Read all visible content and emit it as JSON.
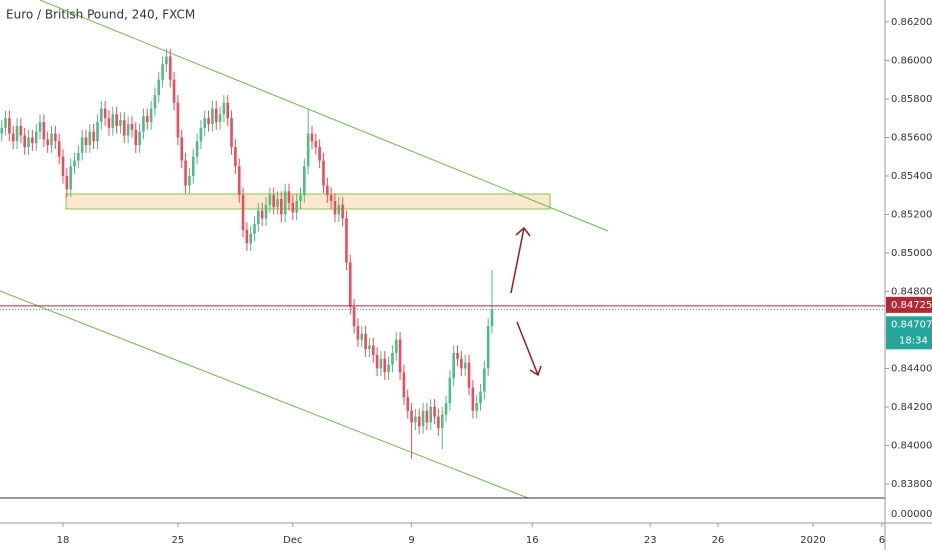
{
  "chart_data": {
    "type": "candlestick",
    "title": "Euro / British Pound, 240, FXCM",
    "up_color": "#53b987",
    "down_color": "#eb4d5c",
    "xlim": [
      -16.45,
      214.6
    ],
    "ylim": [
      0.83597,
      0.86314
    ],
    "xticks": [
      {
        "value": 0,
        "label": "18"
      },
      {
        "value": 30,
        "label": "25"
      },
      {
        "value": 60,
        "label": "Dec"
      },
      {
        "value": 91,
        "label": "9"
      },
      {
        "value": 122.5,
        "label": "16"
      },
      {
        "value": 153.3,
        "label": "23"
      },
      {
        "value": 171,
        "label": "26"
      },
      {
        "value": 195.8,
        "label": "2020"
      },
      {
        "value": 213.8,
        "label": "6"
      }
    ],
    "yticks": [
      {
        "value": 0.862,
        "label": "0.86200"
      },
      {
        "value": 0.86,
        "label": "0.86000"
      },
      {
        "value": 0.858,
        "label": "0.85800"
      },
      {
        "value": 0.856,
        "label": "0.85600"
      },
      {
        "value": 0.854,
        "label": "0.85400"
      },
      {
        "value": 0.852,
        "label": "0.85200"
      },
      {
        "value": 0.85,
        "label": "0.85000"
      },
      {
        "value": 0.848,
        "label": "0.84800"
      },
      {
        "value": 0.846,
        "label": "0.84600"
      },
      {
        "value": 0.844,
        "label": "0.84400"
      },
      {
        "value": 0.842,
        "label": "0.84200"
      },
      {
        "value": 0.84,
        "label": "0.84000"
      },
      {
        "value": 0.838,
        "label": "0.83800"
      }
    ],
    "lower_scale_label": "0.00000",
    "ask_line": {
      "value": 0.84725,
      "color": "#b22833"
    },
    "last_line": {
      "value": 0.84707,
      "color": "#26a69a"
    },
    "countdown": "18:34",
    "x": [
      -16,
      -15,
      -14,
      -13,
      -12,
      -11,
      -10,
      -9,
      -8,
      -7,
      -6,
      -5,
      -4,
      -3,
      -2,
      -1,
      0,
      1,
      2,
      3,
      4,
      5,
      6,
      7,
      8,
      9,
      10,
      11,
      12,
      13,
      14,
      15,
      16,
      17,
      18,
      19,
      20,
      21,
      22,
      23,
      24,
      25,
      26,
      27,
      28,
      29,
      30,
      31,
      32,
      33,
      34,
      35,
      36,
      37,
      38,
      39,
      40,
      41,
      42,
      43,
      44,
      45,
      46,
      47,
      48,
      49,
      50,
      51,
      52,
      53,
      54,
      55,
      56,
      57,
      58,
      59,
      60,
      61,
      62,
      63,
      64,
      65,
      66,
      67,
      68,
      69,
      70,
      71,
      72,
      73,
      74,
      75,
      76,
      77,
      78,
      79,
      80,
      81,
      82,
      83,
      84,
      85,
      86,
      87,
      88,
      89,
      90,
      91,
      92,
      93,
      94,
      95,
      96,
      97,
      98,
      99,
      100,
      101,
      102,
      103,
      104,
      105,
      106,
      107,
      108,
      109,
      110,
      111,
      112
    ],
    "open": [
      0.8562,
      0.8565,
      0.857,
      0.8562,
      0.8558,
      0.8566,
      0.8561,
      0.8555,
      0.856,
      0.8557,
      0.8563,
      0.8568,
      0.8559,
      0.8556,
      0.8562,
      0.8558,
      0.855,
      0.854,
      0.8533,
      0.8545,
      0.8548,
      0.8552,
      0.856,
      0.8556,
      0.8563,
      0.8558,
      0.8568,
      0.8575,
      0.857,
      0.8565,
      0.8572,
      0.8566,
      0.8569,
      0.8561,
      0.8567,
      0.8564,
      0.8556,
      0.8563,
      0.8571,
      0.8568,
      0.8575,
      0.8582,
      0.859,
      0.8598,
      0.8602,
      0.859,
      0.8578,
      0.856,
      0.8548,
      0.8535,
      0.854,
      0.855,
      0.8558,
      0.8565,
      0.857,
      0.8567,
      0.8575,
      0.8568,
      0.8572,
      0.8578,
      0.857,
      0.8555,
      0.8545,
      0.853,
      0.8512,
      0.8505,
      0.851,
      0.8515,
      0.8522,
      0.8518,
      0.8525,
      0.853,
      0.8524,
      0.8528,
      0.852,
      0.8532,
      0.8526,
      0.8521,
      0.8527,
      0.853,
      0.8545,
      0.8562,
      0.8558,
      0.8555,
      0.8548,
      0.8535,
      0.853,
      0.8527,
      0.852,
      0.8525,
      0.8518,
      0.8495,
      0.8472,
      0.8462,
      0.8455,
      0.8458,
      0.845,
      0.8452,
      0.8447,
      0.844,
      0.8445,
      0.8438,
      0.8442,
      0.8448,
      0.8455,
      0.8438,
      0.8425,
      0.8418,
      0.8412,
      0.8415,
      0.841,
      0.8418,
      0.8412,
      0.842,
      0.8415,
      0.8409,
      0.8416,
      0.8422,
      0.8435,
      0.8448,
      0.8445,
      0.844,
      0.8443,
      0.843,
      0.8418,
      0.8422,
      0.8428,
      0.844,
      0.8462
    ],
    "high": [
      0.8569,
      0.8574,
      0.8574,
      0.8566,
      0.857,
      0.857,
      0.8565,
      0.8564,
      0.8564,
      0.8567,
      0.8572,
      0.8572,
      0.8563,
      0.8566,
      0.8566,
      0.8562,
      0.8554,
      0.8544,
      0.8549,
      0.8552,
      0.8556,
      0.8564,
      0.8564,
      0.8567,
      0.8567,
      0.8572,
      0.8579,
      0.8579,
      0.8574,
      0.8576,
      0.8576,
      0.8573,
      0.8573,
      0.8571,
      0.8571,
      0.8568,
      0.8567,
      0.8575,
      0.8575,
      0.8579,
      0.8586,
      0.8594,
      0.8602,
      0.8606,
      0.8606,
      0.8594,
      0.8582,
      0.8564,
      0.8552,
      0.8544,
      0.8554,
      0.8562,
      0.8569,
      0.8574,
      0.8574,
      0.8579,
      0.8579,
      0.8576,
      0.8582,
      0.8582,
      0.8574,
      0.8559,
      0.8549,
      0.8534,
      0.8516,
      0.8514,
      0.8519,
      0.8526,
      0.8526,
      0.8529,
      0.8534,
      0.8534,
      0.8532,
      0.8532,
      0.8536,
      0.8536,
      0.853,
      0.8531,
      0.8534,
      0.8549,
      0.8575,
      0.8566,
      0.8562,
      0.8559,
      0.8552,
      0.8539,
      0.8534,
      0.8531,
      0.8529,
      0.8529,
      0.8522,
      0.8499,
      0.8476,
      0.8466,
      0.8462,
      0.8462,
      0.8456,
      0.8456,
      0.8451,
      0.8449,
      0.8449,
      0.8446,
      0.8452,
      0.8459,
      0.8459,
      0.8442,
      0.8429,
      0.8422,
      0.8419,
      0.8419,
      0.8422,
      0.8422,
      0.8424,
      0.8424,
      0.8419,
      0.842,
      0.8426,
      0.8439,
      0.8452,
      0.8452,
      0.8449,
      0.8447,
      0.8447,
      0.8434,
      0.8426,
      0.8432,
      0.8444,
      0.8466,
      0.8491
    ],
    "low": [
      0.8558,
      0.8561,
      0.8558,
      0.8554,
      0.8554,
      0.8557,
      0.8551,
      0.8551,
      0.8553,
      0.8553,
      0.8559,
      0.8555,
      0.8552,
      0.8552,
      0.8554,
      0.8546,
      0.8536,
      0.8529,
      0.8529,
      0.8541,
      0.8544,
      0.8548,
      0.8552,
      0.8552,
      0.8554,
      0.8554,
      0.8564,
      0.8566,
      0.8561,
      0.8561,
      0.8562,
      0.8562,
      0.8557,
      0.8557,
      0.856,
      0.8552,
      0.8552,
      0.8559,
      0.8564,
      0.8564,
      0.8571,
      0.8578,
      0.8586,
      0.8594,
      0.8586,
      0.8574,
      0.8556,
      0.8544,
      0.8531,
      0.8531,
      0.8536,
      0.8546,
      0.8554,
      0.8561,
      0.8563,
      0.8563,
      0.8564,
      0.8564,
      0.8568,
      0.8566,
      0.8551,
      0.8541,
      0.8526,
      0.8508,
      0.8501,
      0.8501,
      0.8506,
      0.8511,
      0.8514,
      0.8514,
      0.8521,
      0.852,
      0.852,
      0.8516,
      0.8516,
      0.8522,
      0.8517,
      0.8517,
      0.8523,
      0.8526,
      0.8541,
      0.8554,
      0.8551,
      0.8544,
      0.8531,
      0.8526,
      0.8523,
      0.8516,
      0.8516,
      0.8514,
      0.8491,
      0.8468,
      0.8458,
      0.8451,
      0.8451,
      0.8446,
      0.8446,
      0.8443,
      0.8436,
      0.8436,
      0.8434,
      0.8434,
      0.8438,
      0.8444,
      0.8434,
      0.8421,
      0.8414,
      0.8393,
      0.8408,
      0.8406,
      0.8406,
      0.8408,
      0.8408,
      0.8411,
      0.8405,
      0.8398,
      0.8412,
      0.8418,
      0.8431,
      0.8441,
      0.8436,
      0.8436,
      0.8426,
      0.8414,
      0.8414,
      0.8418,
      0.8424,
      0.8436,
      0.8458
    ],
    "close": [
      0.8565,
      0.857,
      0.8562,
      0.8558,
      0.8566,
      0.8561,
      0.8555,
      0.856,
      0.8557,
      0.8563,
      0.8568,
      0.8559,
      0.8556,
      0.8562,
      0.8558,
      0.855,
      0.854,
      0.8533,
      0.8545,
      0.8548,
      0.8552,
      0.856,
      0.8556,
      0.8563,
      0.8558,
      0.8568,
      0.8575,
      0.857,
      0.8565,
      0.8572,
      0.8566,
      0.8569,
      0.8561,
      0.8567,
      0.8564,
      0.8556,
      0.8563,
      0.8571,
      0.8568,
      0.8575,
      0.8582,
      0.859,
      0.8598,
      0.8602,
      0.859,
      0.8578,
      0.856,
      0.8548,
      0.8535,
      0.854,
      0.855,
      0.8558,
      0.8565,
      0.857,
      0.8567,
      0.8575,
      0.8568,
      0.8572,
      0.8578,
      0.857,
      0.8555,
      0.8545,
      0.853,
      0.8512,
      0.8505,
      0.851,
      0.8515,
      0.8522,
      0.8518,
      0.8525,
      0.853,
      0.8524,
      0.8528,
      0.852,
      0.8532,
      0.8526,
      0.8521,
      0.8527,
      0.853,
      0.8545,
      0.8562,
      0.8558,
      0.8555,
      0.8548,
      0.8535,
      0.853,
      0.8527,
      0.852,
      0.8525,
      0.8518,
      0.8495,
      0.8472,
      0.8462,
      0.8455,
      0.8458,
      0.845,
      0.8452,
      0.8447,
      0.844,
      0.8445,
      0.8438,
      0.8442,
      0.8448,
      0.8455,
      0.8438,
      0.8425,
      0.8418,
      0.8412,
      0.8415,
      0.841,
      0.8418,
      0.8412,
      0.842,
      0.8415,
      0.8409,
      0.8416,
      0.8422,
      0.8435,
      0.8448,
      0.8445,
      0.844,
      0.8443,
      0.843,
      0.8418,
      0.8422,
      0.8428,
      0.844,
      0.8462,
      0.84707
    ]
  }
}
